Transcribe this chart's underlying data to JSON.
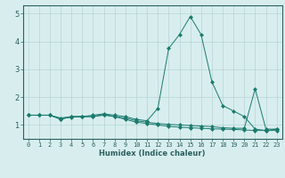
{
  "x": [
    0,
    1,
    2,
    3,
    4,
    5,
    6,
    7,
    8,
    9,
    10,
    11,
    12,
    13,
    14,
    15,
    16,
    17,
    18,
    19,
    20,
    21,
    22,
    23
  ],
  "y_line1": [
    1.35,
    1.35,
    1.35,
    1.25,
    1.3,
    1.3,
    1.3,
    1.35,
    1.3,
    1.2,
    1.1,
    1.05,
    1.0,
    0.95,
    0.92,
    0.9,
    0.88,
    0.86,
    0.85,
    0.84,
    0.82,
    0.8,
    0.8,
    0.8
  ],
  "y_line2": [
    1.35,
    1.35,
    1.35,
    1.2,
    1.3,
    1.3,
    1.35,
    1.4,
    1.35,
    1.3,
    1.2,
    1.15,
    1.6,
    3.75,
    4.25,
    4.9,
    4.25,
    2.55,
    1.7,
    1.5,
    1.3,
    0.85,
    0.8,
    0.85
  ],
  "y_line3": [
    1.35,
    1.35,
    1.35,
    1.22,
    1.28,
    1.3,
    1.3,
    1.38,
    1.3,
    1.25,
    1.15,
    1.1,
    1.05,
    1.02,
    1.0,
    0.98,
    0.96,
    0.94,
    0.9,
    0.88,
    0.88,
    2.3,
    0.85,
    0.85
  ],
  "line_color": "#1a7a6e",
  "bg_color": "#d8eeee",
  "grid_color": "#b8d4d4",
  "axis_color": "#2d6060",
  "xlabel": "Humidex (Indice chaleur)",
  "ylim": [
    0.5,
    5.3
  ],
  "xlim": [
    -0.5,
    23.5
  ],
  "yticks": [
    1,
    2,
    3,
    4,
    5
  ],
  "xticks": [
    0,
    1,
    2,
    3,
    4,
    5,
    6,
    7,
    8,
    9,
    10,
    11,
    12,
    13,
    14,
    15,
    16,
    17,
    18,
    19,
    20,
    21,
    22,
    23
  ]
}
